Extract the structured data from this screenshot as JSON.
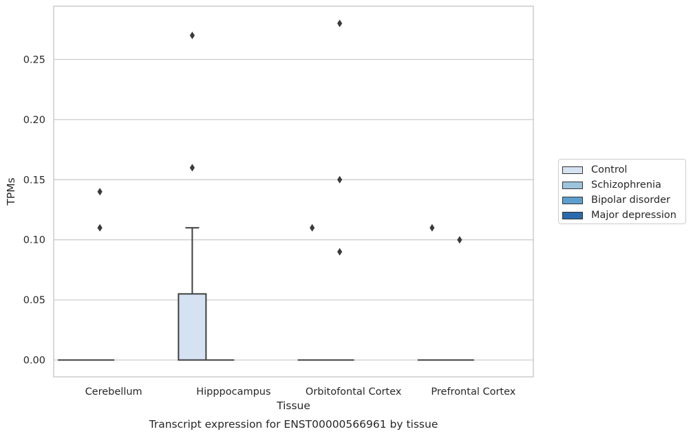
{
  "chart_data": {
    "type": "box",
    "title": "Transcript expression for ENST00000566961 by tissue",
    "xlabel": "Tissue",
    "ylabel": "TPMs",
    "ylim": [
      -0.014,
      0.29
    ],
    "yticks": [
      "0.00",
      "0.05",
      "0.10",
      "0.15",
      "0.20",
      "0.25"
    ],
    "grid": true,
    "legend_position": "right",
    "categories": [
      "Cerebellum",
      "Hipppocampus",
      "Orbitofontal Cortex",
      "Prefrontal Cortex"
    ],
    "series": [
      {
        "name": "Control",
        "color": "#d4e2f1"
      },
      {
        "name": "Schizophrenia",
        "color": "#9cc4dd"
      },
      {
        "name": "Bipolar disorder",
        "color": "#5c9fcd"
      },
      {
        "name": "Major depression",
        "color": "#2a6aad"
      }
    ],
    "boxes": [
      {
        "category": 0,
        "series": 0,
        "q1": 0,
        "median": 0,
        "q3": 0,
        "whisker_low": 0,
        "whisker_high": 0,
        "outliers": []
      },
      {
        "category": 0,
        "series": 1,
        "q1": 0,
        "median": 0,
        "q3": 0,
        "whisker_low": 0,
        "whisker_high": 0,
        "outliers": [
          0.11,
          0.14
        ]
      },
      {
        "category": 1,
        "series": 0,
        "q1": 0,
        "median": 0,
        "q3": 0.055,
        "whisker_low": 0,
        "whisker_high": 0.11,
        "outliers": [
          0.16,
          0.27
        ]
      },
      {
        "category": 1,
        "series": 1,
        "q1": 0,
        "median": 0,
        "q3": 0,
        "whisker_low": 0,
        "whisker_high": 0,
        "outliers": []
      },
      {
        "category": 2,
        "series": 0,
        "q1": 0,
        "median": 0,
        "q3": 0,
        "whisker_low": 0,
        "whisker_high": 0,
        "outliers": [
          0.11
        ]
      },
      {
        "category": 2,
        "series": 1,
        "q1": 0,
        "median": 0,
        "q3": 0,
        "whisker_low": 0,
        "whisker_high": 0,
        "outliers": [
          0.09,
          0.15,
          0.28
        ]
      },
      {
        "category": 3,
        "series": 0,
        "q1": 0,
        "median": 0,
        "q3": 0,
        "whisker_low": 0,
        "whisker_high": 0,
        "outliers": [
          0.11
        ]
      },
      {
        "category": 3,
        "series": 1,
        "q1": 0,
        "median": 0,
        "q3": 0,
        "whisker_low": 0,
        "whisker_high": 0,
        "outliers": [
          0.1
        ]
      }
    ]
  }
}
